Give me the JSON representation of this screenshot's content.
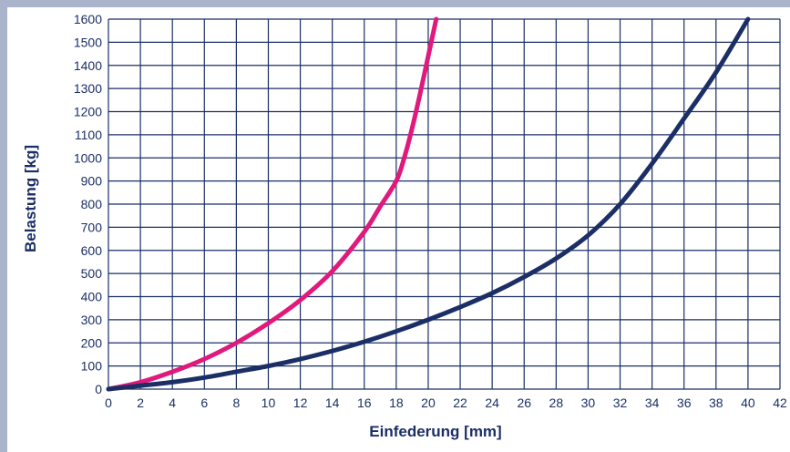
{
  "chart_data": {
    "type": "line",
    "title": "",
    "xlabel": "Einfederung [mm]",
    "ylabel": "Belastung [kg]",
    "xlim": [
      0,
      42
    ],
    "ylim": [
      0,
      1600
    ],
    "x_ticks": [
      "0",
      "2",
      "4",
      "6",
      "8",
      "10",
      "12",
      "14",
      "16",
      "18",
      "20",
      "22",
      "24",
      "26",
      "28",
      "30",
      "32",
      "34",
      "36",
      "38",
      "40",
      "42"
    ],
    "y_ticks": [
      "0",
      "100",
      "200",
      "300",
      "400",
      "500",
      "600",
      "700",
      "800",
      "900",
      "1000",
      "1100",
      "1200",
      "1300",
      "1400",
      "1500",
      "1600"
    ],
    "grid": true,
    "series": [
      {
        "color": "#e0197d",
        "x": [
          0,
          2,
          4,
          6,
          8,
          10,
          12,
          14,
          16,
          17,
          18,
          18.5,
          19,
          19.5,
          20,
          20.5
        ],
        "y": [
          0,
          30,
          75,
          130,
          200,
          285,
          385,
          510,
          680,
          790,
          900,
          1000,
          1130,
          1280,
          1440,
          1600
        ]
      },
      {
        "color": "#1b2f66",
        "x": [
          0,
          2,
          4,
          6,
          8,
          10,
          12,
          14,
          16,
          18,
          20,
          22,
          24,
          26,
          28,
          30,
          32,
          34,
          36,
          38,
          40
        ],
        "y": [
          0,
          15,
          30,
          50,
          75,
          100,
          130,
          165,
          205,
          250,
          300,
          355,
          415,
          485,
          565,
          665,
          800,
          975,
          1170,
          1370,
          1600
        ]
      }
    ]
  }
}
